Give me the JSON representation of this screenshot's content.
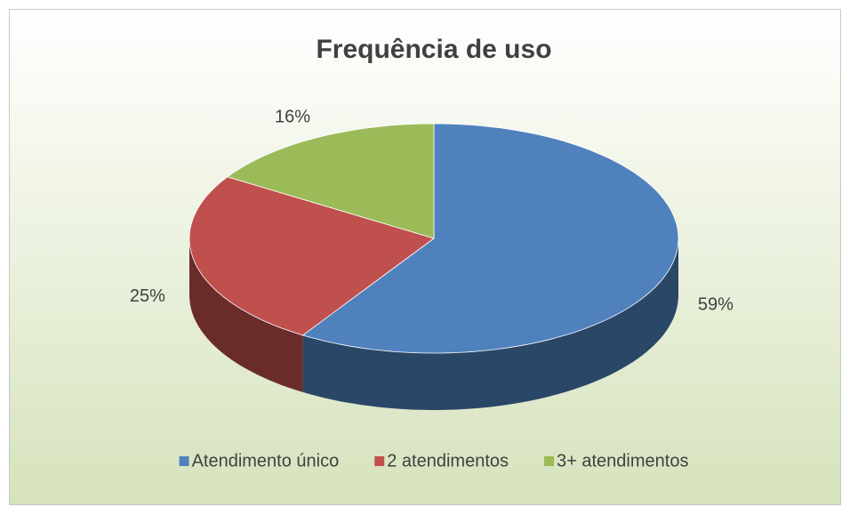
{
  "chart_data": {
    "type": "pie3d",
    "title": "Frequência de uso",
    "categories": [
      "Atendimento único",
      "2 atendimentos",
      "3+ atendimentos"
    ],
    "values": [
      59,
      25,
      16
    ],
    "value_labels": [
      "59%",
      "25%",
      "16%"
    ],
    "colors": [
      "#4f81bd",
      "#c0504d",
      "#9bbb59"
    ]
  }
}
